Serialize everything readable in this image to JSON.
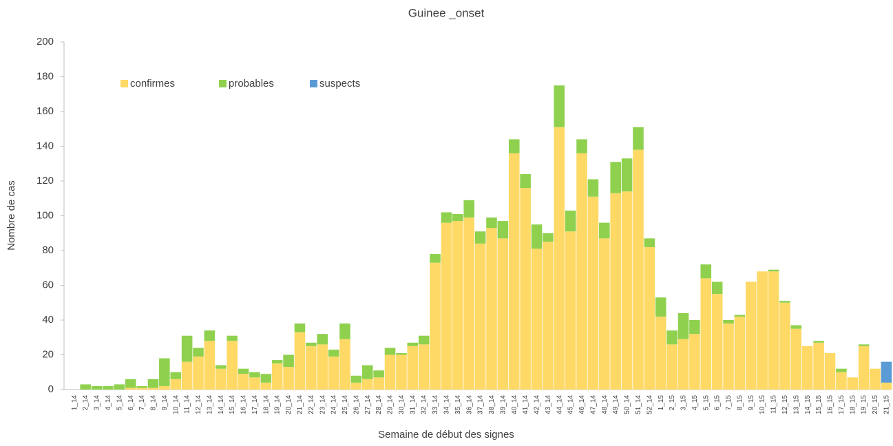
{
  "chart_data": {
    "type": "bar",
    "stacked": true,
    "title": "Guinee _onset",
    "x_label": "Semaine de début des signes",
    "y_label": "Nombre de cas",
    "categories": [
      "1_14",
      "2_14",
      "3_14",
      "4_14",
      "5_14",
      "6_14",
      "7_14",
      "8_14",
      "9_14",
      "10_14",
      "11_14",
      "12_14",
      "13_14",
      "14_14",
      "15_14",
      "16_14",
      "17_14",
      "18_14",
      "19_14",
      "20_14",
      "21_14",
      "22_14",
      "23_14",
      "24_14",
      "25_14",
      "26_14",
      "27_14",
      "28_14",
      "29_14",
      "30_14",
      "31_14",
      "32_14",
      "33_14",
      "34_14",
      "35_14",
      "36_14",
      "37_14",
      "38_14",
      "39_14",
      "40_14",
      "41_14",
      "42_14",
      "43_14",
      "44_14",
      "45_14",
      "46_14",
      "47_14",
      "48_14",
      "49_14",
      "50_14",
      "51_14",
      "52_14",
      "1_15",
      "2_15",
      "3_15",
      "4_15",
      "5_15",
      "6_15",
      "7_15",
      "8_15",
      "9_15",
      "10_15",
      "11_15",
      "12_15",
      "13_15",
      "14_15",
      "15_15",
      "16_15",
      "17_15",
      "18_15",
      "19_15",
      "20_15",
      "21_15"
    ],
    "series": [
      {
        "name": "confirmes",
        "color": "#ffd966",
        "values": [
          0,
          0,
          0,
          0,
          0,
          1,
          1,
          1,
          2,
          6,
          16,
          19,
          28,
          12,
          28,
          9,
          7,
          4,
          15,
          13,
          33,
          25,
          26,
          19,
          29,
          4,
          6,
          7,
          20,
          20,
          25,
          26,
          73,
          96,
          97,
          99,
          84,
          93,
          87,
          136,
          116,
          81,
          85,
          151,
          91,
          136,
          111,
          87,
          113,
          114,
          138,
          82,
          42,
          26,
          29,
          32,
          64,
          55,
          38,
          42,
          62,
          68,
          68,
          50,
          35,
          25,
          27,
          21,
          10,
          7,
          25,
          12,
          4
        ]
      },
      {
        "name": "probables",
        "color": "#8fd14f",
        "values": [
          0,
          3,
          2,
          2,
          3,
          5,
          1,
          5,
          16,
          4,
          15,
          5,
          6,
          2,
          3,
          3,
          3,
          5,
          2,
          7,
          5,
          2,
          6,
          4,
          9,
          4,
          8,
          4,
          4,
          1,
          2,
          5,
          5,
          6,
          4,
          10,
          7,
          6,
          10,
          8,
          8,
          14,
          5,
          24,
          12,
          8,
          10,
          9,
          18,
          19,
          13,
          5,
          11,
          8,
          15,
          8,
          8,
          7,
          2,
          1,
          0,
          0,
          1,
          1,
          2,
          0,
          1,
          0,
          2,
          0,
          1,
          0,
          0
        ]
      },
      {
        "name": "suspects",
        "color": "#5b9bd5",
        "values": [
          0,
          0,
          0,
          0,
          0,
          0,
          0,
          0,
          0,
          0,
          0,
          0,
          0,
          0,
          0,
          0,
          0,
          0,
          0,
          0,
          0,
          0,
          0,
          0,
          0,
          0,
          0,
          0,
          0,
          0,
          0,
          0,
          0,
          0,
          0,
          0,
          0,
          0,
          0,
          0,
          0,
          0,
          0,
          0,
          0,
          0,
          0,
          0,
          0,
          0,
          0,
          0,
          0,
          0,
          0,
          0,
          0,
          0,
          0,
          0,
          0,
          0,
          0,
          0,
          0,
          0,
          0,
          0,
          0,
          0,
          0,
          0,
          12
        ]
      }
    ],
    "ylim": [
      0,
      200
    ],
    "yticks": [
      0,
      20,
      40,
      60,
      80,
      100,
      120,
      140,
      160,
      180,
      200
    ],
    "legend": "top-left"
  }
}
